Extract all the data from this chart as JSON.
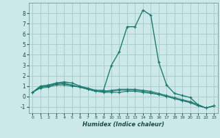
{
  "xlabel": "Humidex (Indice chaleur)",
  "background_color": "#cce8e8",
  "grid_color": "#aacccc",
  "line_color": "#1a7a6e",
  "xlim": [
    -0.5,
    23.5
  ],
  "ylim": [
    -1.6,
    9.0
  ],
  "xticks": [
    0,
    1,
    2,
    3,
    4,
    5,
    6,
    7,
    8,
    9,
    10,
    11,
    12,
    13,
    14,
    15,
    16,
    17,
    18,
    19,
    20,
    21,
    22,
    23
  ],
  "yticks": [
    -1,
    0,
    1,
    2,
    3,
    4,
    5,
    6,
    7,
    8
  ],
  "series": [
    {
      "x": [
        0,
        1,
        2,
        3,
        4,
        5,
        6,
        7,
        8,
        9,
        10,
        11,
        12,
        13,
        14,
        15,
        16,
        17,
        18,
        19,
        20,
        21,
        22,
        23
      ],
      "y": [
        0.4,
        1.0,
        1.1,
        1.3,
        1.4,
        1.3,
        1.0,
        0.8,
        0.6,
        0.6,
        3.0,
        4.3,
        6.7,
        6.7,
        8.3,
        7.8,
        3.3,
        1.1,
        0.3,
        0.1,
        -0.1,
        -0.8,
        -1.1,
        -0.9
      ]
    },
    {
      "x": [
        0,
        1,
        2,
        3,
        4,
        5,
        6,
        7,
        8,
        9,
        10,
        11,
        12,
        13,
        14,
        15,
        16,
        17,
        18,
        19,
        20,
        21,
        22,
        23
      ],
      "y": [
        0.4,
        0.9,
        1.0,
        1.2,
        1.2,
        1.1,
        0.9,
        0.7,
        0.5,
        0.5,
        0.6,
        0.7,
        0.7,
        0.7,
        0.6,
        0.5,
        0.3,
        0.1,
        -0.1,
        -0.3,
        -0.5,
        -0.8,
        -1.1,
        -0.9
      ]
    },
    {
      "x": [
        0,
        1,
        2,
        3,
        4,
        5,
        6,
        7,
        8,
        9,
        10,
        11,
        12,
        13,
        14,
        15,
        16,
        17,
        18,
        19,
        20,
        21,
        22,
        23
      ],
      "y": [
        0.4,
        0.8,
        0.9,
        1.1,
        1.1,
        1.0,
        0.9,
        0.7,
        0.5,
        0.4,
        0.4,
        0.4,
        0.5,
        0.5,
        0.4,
        0.3,
        0.2,
        0.0,
        -0.2,
        -0.4,
        -0.6,
        -0.9,
        -1.1,
        -0.9
      ]
    },
    {
      "x": [
        0,
        1,
        2,
        3,
        4,
        5,
        6,
        7,
        8,
        9,
        10,
        11,
        12,
        13,
        14,
        15,
        16,
        17,
        18,
        19,
        20,
        21,
        22,
        23
      ],
      "y": [
        0.4,
        0.9,
        1.0,
        1.2,
        1.3,
        1.1,
        0.9,
        0.7,
        0.5,
        0.5,
        0.5,
        0.6,
        0.6,
        0.6,
        0.5,
        0.4,
        0.2,
        0.0,
        -0.2,
        -0.4,
        -0.5,
        -0.8,
        -1.1,
        -0.9
      ]
    }
  ]
}
